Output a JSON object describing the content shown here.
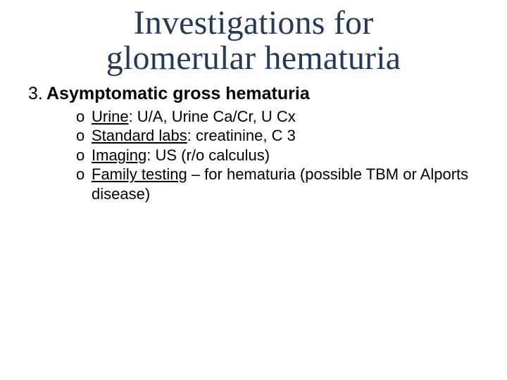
{
  "title": {
    "line1": "Investigations for",
    "line2": "glomerular hematuria",
    "fontsize": 48,
    "color": "#243a57"
  },
  "body": {
    "fontsize_l1": 25,
    "fontsize_l2": 22,
    "lineheight_l2": 1.25,
    "color": "#000000",
    "list_number": "3.",
    "heading": "Asymptomatic gross hematuria",
    "sub_marker": "o",
    "items": [
      {
        "label": "Urine",
        "rest": ": U/A, Urine Ca/Cr, U Cx"
      },
      {
        "label": "Standard labs",
        "rest": ": creatinine, C 3"
      },
      {
        "label": "Imaging",
        "rest": ": US (r/o calculus)"
      },
      {
        "label": "Family testing",
        "rest": " – for hematuria (possible TBM or Alports disease)"
      }
    ]
  },
  "background_color": "#ffffff"
}
